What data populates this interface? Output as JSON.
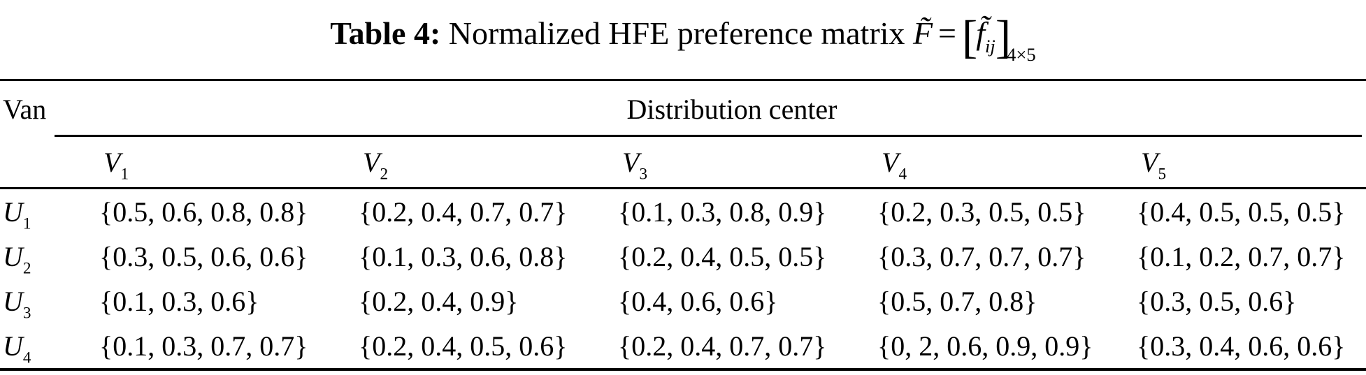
{
  "title": {
    "label": "Table 4:",
    "text": "Normalized HFE preference matrix",
    "formula": {
      "F": "F̃",
      "eq": "=",
      "lbracket": "[",
      "f": "f̃",
      "ij": "ij",
      "rbracket": "]",
      "dims": "4×5"
    }
  },
  "table": {
    "corner_header": "Van",
    "group_header": "Distribution center",
    "columns": [
      {
        "base": "V",
        "sub": "1"
      },
      {
        "base": "V",
        "sub": "2"
      },
      {
        "base": "V",
        "sub": "3"
      },
      {
        "base": "V",
        "sub": "4"
      },
      {
        "base": "V",
        "sub": "5"
      }
    ],
    "rows": [
      {
        "label": {
          "base": "U",
          "sub": "1"
        },
        "cells": [
          "{0.5, 0.6, 0.8, 0.8}",
          "{0.2, 0.4, 0.7, 0.7}",
          "{0.1, 0.3, 0.8, 0.9}",
          "{0.2, 0.3, 0.5, 0.5}",
          "{0.4, 0.5, 0.5, 0.5}"
        ]
      },
      {
        "label": {
          "base": "U",
          "sub": "2"
        },
        "cells": [
          "{0.3, 0.5, 0.6, 0.6}",
          "{0.1, 0.3, 0.6, 0.8}",
          "{0.2, 0.4, 0.5, 0.5}",
          "{0.3, 0.7, 0.7, 0.7}",
          "{0.1, 0.2, 0.7, 0.7}"
        ]
      },
      {
        "label": {
          "base": "U",
          "sub": "3"
        },
        "cells": [
          "{0.1, 0.3, 0.6}",
          "{0.2, 0.4, 0.9}",
          "{0.4, 0.6, 0.6}",
          "{0.5, 0.7, 0.8}",
          "{0.3, 0.5, 0.6}"
        ]
      },
      {
        "label": {
          "base": "U",
          "sub": "4"
        },
        "cells": [
          "{0.1, 0.3, 0.7, 0.7}",
          "{0.2, 0.4, 0.5, 0.6}",
          "{0.2, 0.4, 0.7, 0.7}",
          "{0, 2, 0.6, 0.9, 0.9}",
          "{0.3, 0.4, 0.6, 0.6}"
        ]
      }
    ]
  }
}
